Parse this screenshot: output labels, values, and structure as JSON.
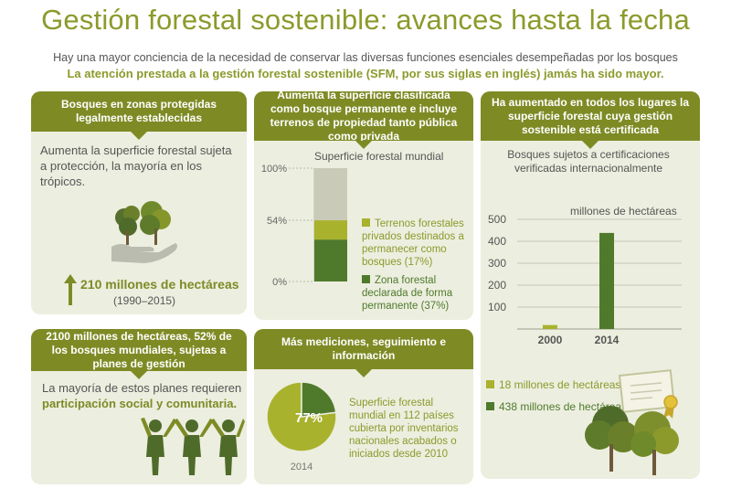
{
  "header": {
    "title": "Gestión forestal sostenible: avances hasta la fecha",
    "subtitle": "Hay una mayor conciencia de la necesidad de conservar las diversas funciones esenciales desempeñadas por los bosques",
    "highlight": "La atención prestada a la gestión forestal sostenible (SFM, por sus siglas en inglés) jamás ha sido mayor."
  },
  "colors": {
    "olive": "#7e8b25",
    "light_olive": "#a8b22d",
    "dark_green": "#4f7a2c",
    "grey": "#c9cbb8",
    "panel_bg": "#eceedf"
  },
  "panel_protected": {
    "heading": "Bosques en zonas protegidas legalmente establecidas",
    "text": "Aumenta la superficie forestal sujeta a protección, la mayoría en los trópicos.",
    "stat": "210 millones de hectáreas",
    "period": "(1990–2015)",
    "icon": "hand-holding-trees-icon"
  },
  "panel_permanent": {
    "heading": "Aumenta la superficie clasificada como bosque permanente e incluye terrenos de propiedad tanto pública como privada",
    "chart_title": "Superficie forestal mundial",
    "legend_private": "Terrenos forestales privados destinados a permanecer como bosques (17%)",
    "legend_public": "Zona forestal declarada de forma permanente (37%)"
  },
  "panel_certified": {
    "heading": "Ha aumentado en todos los lugares la superficie forestal cuya gestión sostenible está certificada",
    "chart_title": "Bosques sujetos a certificaciones verificadas internacionalmente",
    "unit": "millones de hectáreas",
    "legend_2000": "18 millones de hectáreas",
    "legend_2014": "438 millones de hectáreas",
    "icon": "certificate-icon"
  },
  "panel_plans": {
    "heading": "2100 millones de hectáreas, 52% de los bosques mundiales, sujetas a planes de gestión",
    "text_plain": "La mayoría de estos planes requieren",
    "text_bold": "participación social y comunitaria.",
    "icon": "people-trees-icon"
  },
  "panel_monitoring": {
    "heading": "Más mediciones, seguimiento e información",
    "text": "Superficie forestal mundial en 112 países cubierta por inventarios nacionales acabados o iniciados desde 2010"
  },
  "chart_data": [
    {
      "type": "bar",
      "stacked": true,
      "title": "Superficie forestal mundial",
      "yticks": [
        "0%",
        "54%",
        "100%"
      ],
      "ylim": [
        0,
        100
      ],
      "series": [
        {
          "name": "Zona forestal declarada de forma permanente (37%)",
          "values": [
            37
          ],
          "color": "#4f7a2c"
        },
        {
          "name": "Terrenos forestales privados destinados a permanecer como bosques (17%)",
          "values": [
            17
          ],
          "color": "#a8b22d"
        },
        {
          "values": [
            46
          ],
          "color": "#c9cbb8"
        }
      ]
    },
    {
      "type": "bar",
      "title": "Bosques sujetos a certificaciones verificadas internacionalmente",
      "ylabel": "millones de hectáreas",
      "categories": [
        "2000",
        "2014"
      ],
      "values": [
        18,
        438
      ],
      "colors": [
        "#a8b22d",
        "#4f7a2c"
      ],
      "yticks": [
        100,
        200,
        300,
        400,
        500
      ],
      "ylim": [
        0,
        500
      ]
    },
    {
      "type": "pie",
      "label": "77%",
      "xlabel": "2014",
      "values": [
        77,
        23
      ],
      "colors": [
        "#a8b22d",
        "#4f7a2c"
      ]
    }
  ]
}
